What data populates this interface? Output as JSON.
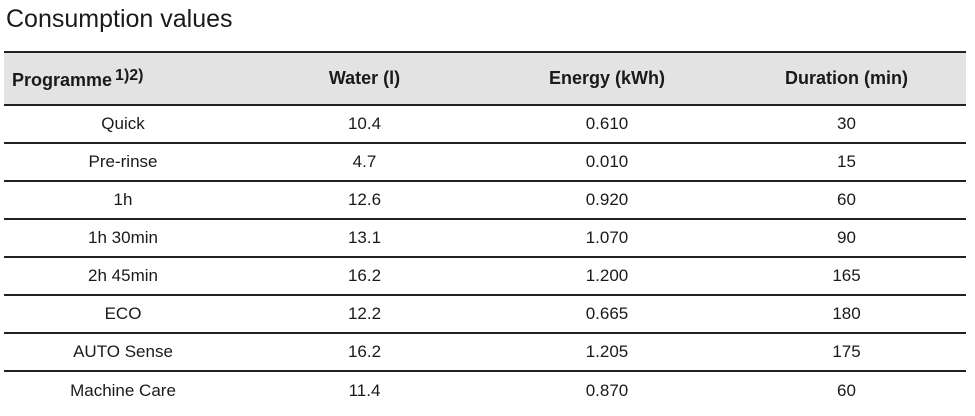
{
  "title": "Consumption values",
  "table": {
    "headers": {
      "programme": "Programme",
      "programme_note": "1)2)",
      "water": "Water (l)",
      "energy": "Energy (kWh)",
      "duration": "Duration (min)"
    },
    "rows": [
      {
        "programme": "Quick",
        "water": "10.4",
        "energy": "0.610",
        "duration": "30"
      },
      {
        "programme": "Pre-rinse",
        "water": "4.7",
        "energy": "0.010",
        "duration": "15"
      },
      {
        "programme": "1h",
        "water": "12.6",
        "energy": "0.920",
        "duration": "60"
      },
      {
        "programme": "1h 30min",
        "water": "13.1",
        "energy": "1.070",
        "duration": "90"
      },
      {
        "programme": "2h 45min",
        "water": "16.2",
        "energy": "1.200",
        "duration": "165"
      },
      {
        "programme": "ECO",
        "water": "12.2",
        "energy": "0.665",
        "duration": "180"
      },
      {
        "programme": "AUTO Sense",
        "water": "16.2",
        "energy": "1.205",
        "duration": "175"
      },
      {
        "programme": "Machine Care",
        "water": "11.4",
        "energy": "0.870",
        "duration": "60"
      }
    ]
  }
}
